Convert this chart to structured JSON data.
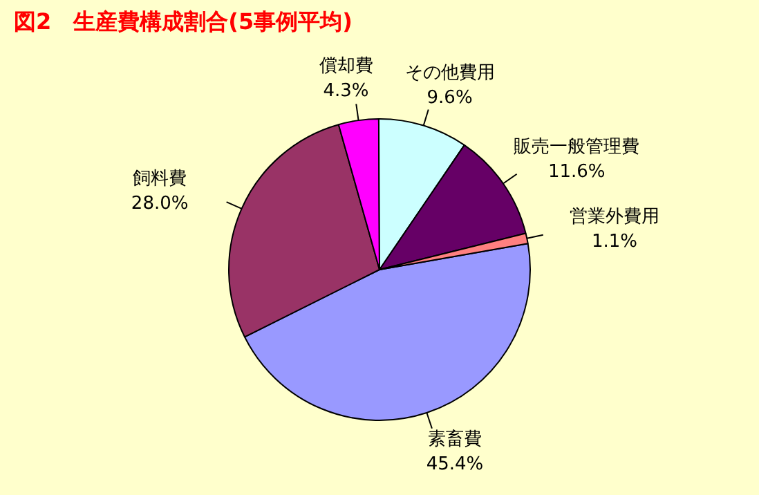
{
  "chart_data": {
    "type": "pie",
    "title": "図2　生産費構成割合(5事例平均)",
    "categories": [
      "素畜費",
      "飼料費",
      "償却費",
      "その他費用",
      "販売一般管理費",
      "営業外費用"
    ],
    "values": [
      45.4,
      28.0,
      4.3,
      9.6,
      11.6,
      1.1
    ],
    "value_labels": [
      "45.4%",
      "28.0%",
      "4.3%",
      "9.6%",
      "11.6%",
      "1.1%"
    ],
    "colors": [
      "#9999ff",
      "#993366",
      "#ff00ff",
      "#ccffff",
      "#660066",
      "#ff8080"
    ],
    "legend": false
  }
}
